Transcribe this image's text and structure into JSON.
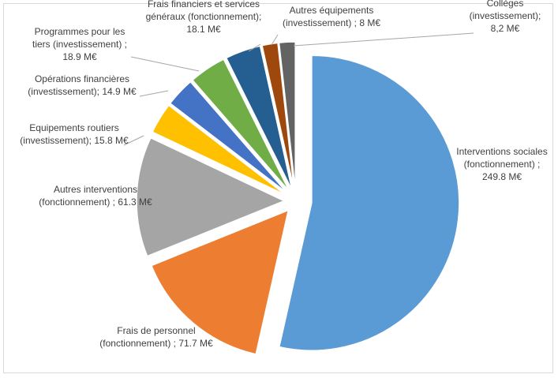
{
  "chart_data": {
    "type": "pie",
    "title": "",
    "slices": [
      {
        "name": "Interventions sociales (fonctionnement)",
        "value": 249.8,
        "label_lines": [
          "Interventions sociales",
          "(fonctionnement) ;",
          "249.8 M€"
        ],
        "color": "#5b9bd5"
      },
      {
        "name": "Frais de personnel (fonctionnement)",
        "value": 71.7,
        "label_lines": [
          "Frais de personnel",
          "(fonctionnement) ; 71.7 M€"
        ],
        "color": "#ed7d31"
      },
      {
        "name": "Autres interventions (fonctionnement)",
        "value": 61.3,
        "label_lines": [
          "Autres interventions",
          "(fonctionnement) ; 61.3 M€"
        ],
        "color": "#a5a5a5"
      },
      {
        "name": "Equipements routiers (investissement)",
        "value": 15.8,
        "label_lines": [
          "Equipements routiers",
          "(investissement); 15.8 M€"
        ],
        "color": "#ffc000"
      },
      {
        "name": "Opérations financières (investissement)",
        "value": 14.9,
        "label_lines": [
          "Opérations financières",
          "(investissement); 14.9 M€"
        ],
        "color": "#4472c4"
      },
      {
        "name": "Programmes pour les tiers (investissement)",
        "value": 18.9,
        "label_lines": [
          "Programmes pour les",
          "tiers (investissement) ;",
          "18.9 M€"
        ],
        "color": "#70ad47"
      },
      {
        "name": "Frais financiers et services généraux (fonctionnement)",
        "value": 18.1,
        "label_lines": [
          "Frais financiers et services",
          "généraux (fonctionnement);",
          "18.1 M€"
        ],
        "color": "#255e91"
      },
      {
        "name": "Autres équipements (investissement)",
        "value": 8,
        "label_lines": [
          "Autres équipements",
          "(investissement) ; 8 M€"
        ],
        "color": "#9e480e"
      },
      {
        "name": "Collèges (investissement)",
        "value": 8.2,
        "label_lines": [
          "Collèges",
          "(investissement);",
          "8,2 M€"
        ],
        "color": "#636363"
      }
    ]
  }
}
